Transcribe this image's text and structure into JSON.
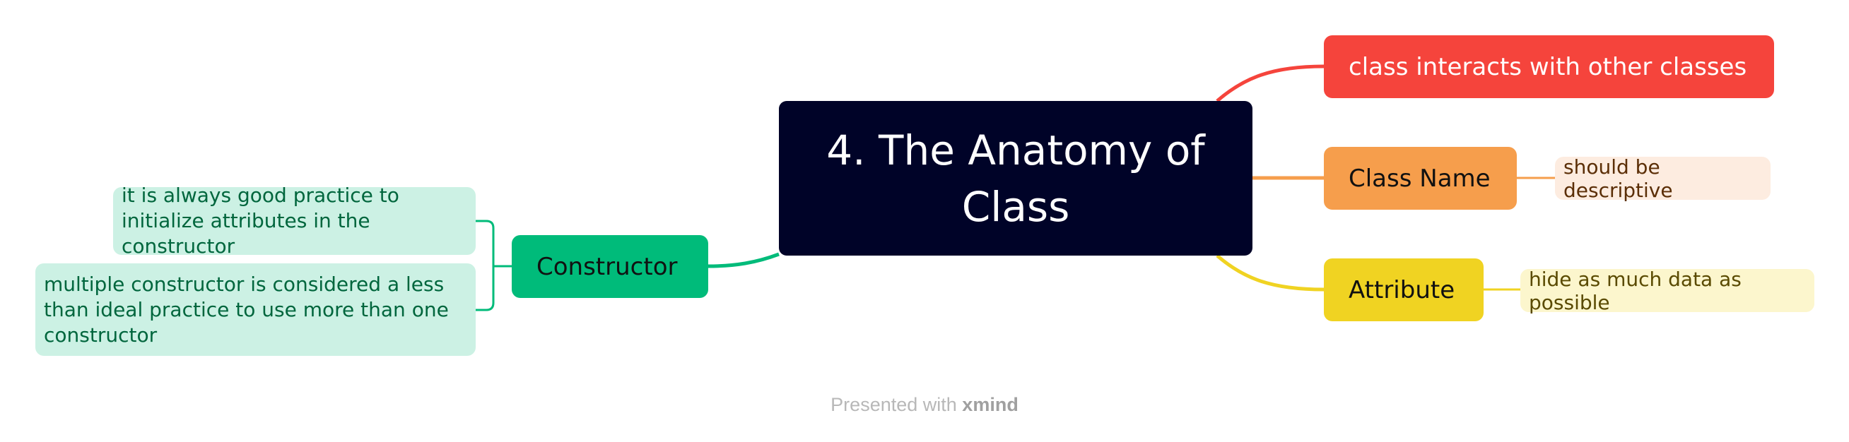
{
  "central_topic": "4. The Anatomy of Class",
  "branches": [
    {
      "label": "class interacts with other classes",
      "color": "#F5443C"
    },
    {
      "label": "Class Name",
      "color": "#F69E4C",
      "note": "should be descriptive"
    },
    {
      "label": "Attribute",
      "color": "#F0D322",
      "note": "hide as much data as possible"
    },
    {
      "label": "Constructor",
      "color": "#00BB7A",
      "notes": [
        "it is always good practice to initialize attributes in the constructor",
        "multiple constructor is considered a less than ideal practice to use more than one constructor"
      ]
    }
  ],
  "footer": {
    "prefix": "Presented with",
    "brand": "xmind"
  }
}
